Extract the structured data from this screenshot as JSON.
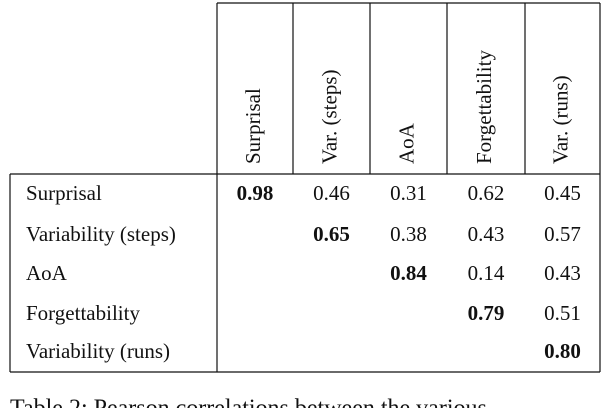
{
  "table": {
    "columns": [
      "Surprisal",
      "Var. (steps)",
      "AoA",
      "Forgettability",
      "Var. (runs)"
    ],
    "rows": [
      {
        "label": "Surprisal",
        "values": [
          "0.98",
          "0.46",
          "0.31",
          "0.62",
          "0.45"
        ]
      },
      {
        "label": "Variability (steps)",
        "values": [
          "0.65",
          "0.38",
          "0.43",
          "0.57"
        ]
      },
      {
        "label": "AoA",
        "values": [
          "0.84",
          "0.14",
          "0.43"
        ]
      },
      {
        "label": "Forgettability",
        "values": [
          "0.79",
          "0.51"
        ]
      },
      {
        "label": "Variability (runs)",
        "values": [
          "0.80"
        ]
      }
    ]
  },
  "caption": "Table 2: Pearson correlations between the various"
}
